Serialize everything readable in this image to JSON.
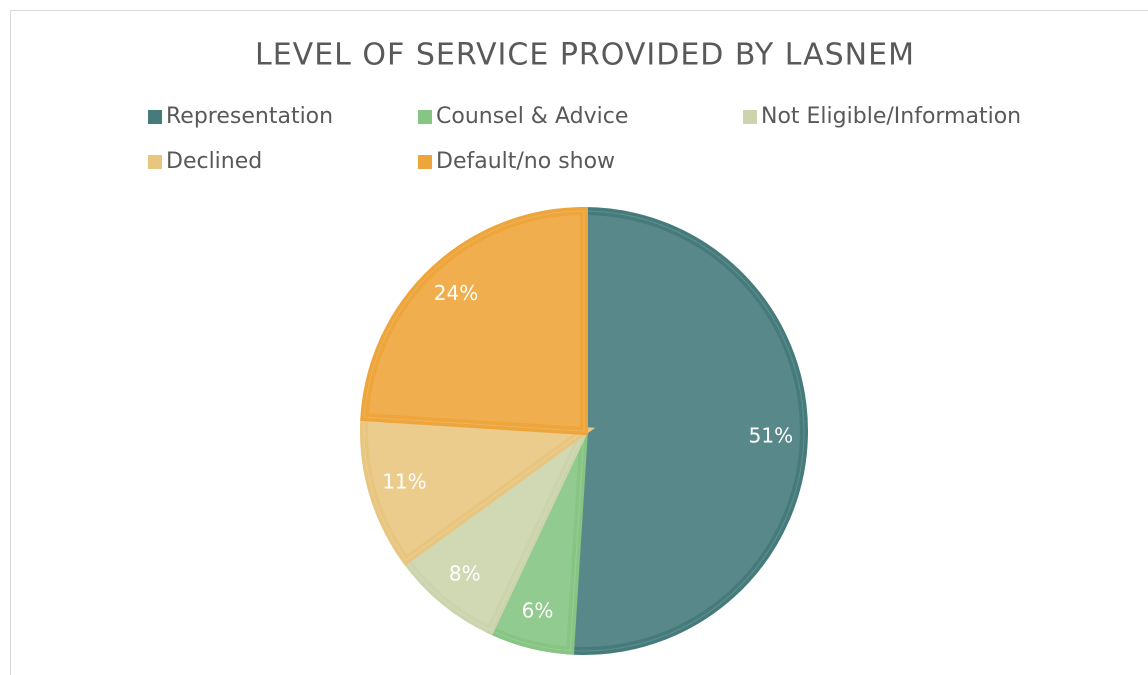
{
  "chart_data": {
    "type": "pie",
    "title": "LEVEL OF SERVICE PROVIDED BY LASNEM",
    "categories": [
      "Representation",
      "Counsel & Advice",
      "Not Eligible/Information",
      "Declined",
      "Default/no show"
    ],
    "values": [
      51,
      6,
      8,
      11,
      24
    ],
    "value_labels": [
      "51%",
      "6%",
      "8%",
      "11%",
      "24%"
    ],
    "colors": [
      "#467b7c",
      "#86c583",
      "#cbd4ac",
      "#e9c67f",
      "#eea53b"
    ]
  }
}
